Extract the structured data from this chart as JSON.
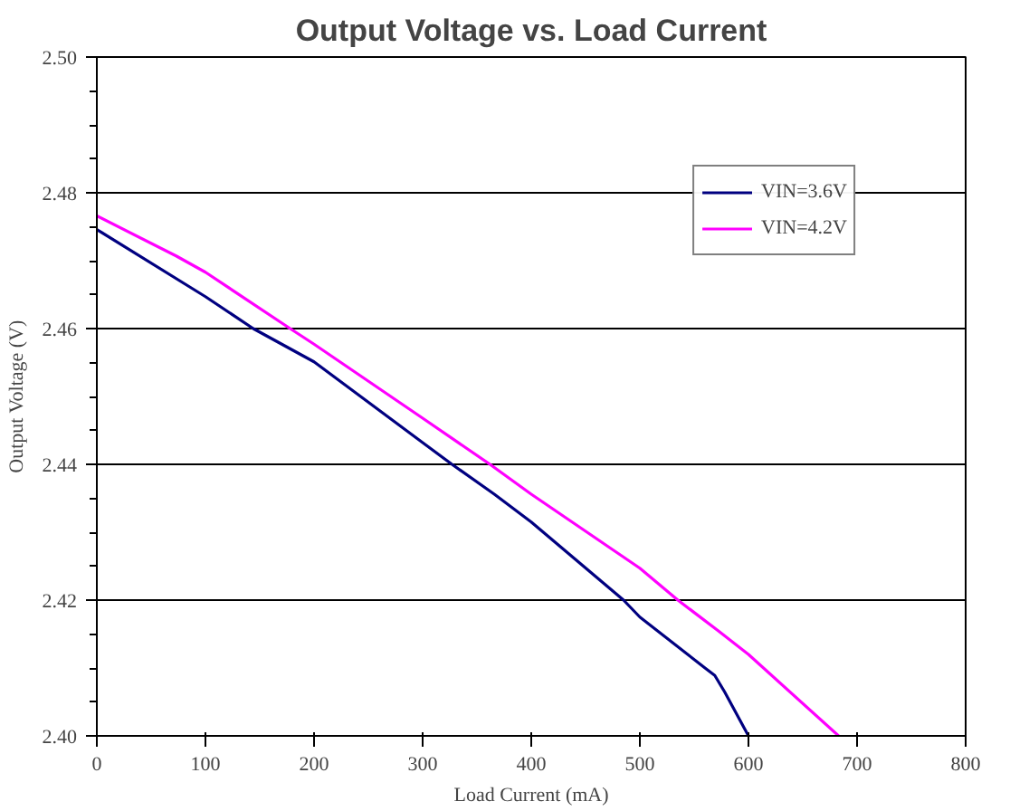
{
  "chart_data": {
    "type": "line",
    "title": "Output Voltage vs. Load Current",
    "xlabel": "Load Current (mA)",
    "ylabel": "Output Voltage (V)",
    "xlim": [
      0,
      800
    ],
    "xticks": [
      0,
      100,
      200,
      300,
      400,
      500,
      600,
      700,
      800
    ],
    "ylim": [
      2.4,
      2.5
    ],
    "yticks": [
      {
        "value": 2.4,
        "label": "2.40"
      },
      {
        "value": 2.42,
        "label": "2.42"
      },
      {
        "value": 2.44,
        "label": "2.44"
      },
      {
        "value": 2.46,
        "label": "2.46"
      },
      {
        "value": 2.48,
        "label": "2.48"
      },
      {
        "value": 2.5,
        "label": "2.50"
      }
    ],
    "grid": "y",
    "legend": "top right",
    "line_style": "solid",
    "marker": "none",
    "series": [
      {
        "name": "VIN=3.6V",
        "color": "#000080",
        "x": [
          0,
          100,
          144,
          200,
          300,
          327,
          366,
          400,
          485,
          500,
          560,
          569,
          578,
          600
        ],
        "values": [
          2.4746,
          2.4647,
          2.46,
          2.4551,
          2.4432,
          2.44,
          2.4356,
          2.4315,
          2.42,
          2.4175,
          2.41,
          2.4089,
          2.4065,
          2.4
        ]
      },
      {
        "name": "VIN=4.2V",
        "color": "#ff00ff",
        "x": [
          0,
          73,
          100,
          178,
          200,
          300,
          362,
          400,
          500,
          535,
          572,
          600,
          683
        ],
        "values": [
          2.4766,
          2.4707,
          2.4683,
          2.46,
          2.4577,
          2.4468,
          2.44,
          2.4356,
          2.4247,
          2.42,
          2.4155,
          2.412,
          2.4
        ]
      }
    ]
  }
}
